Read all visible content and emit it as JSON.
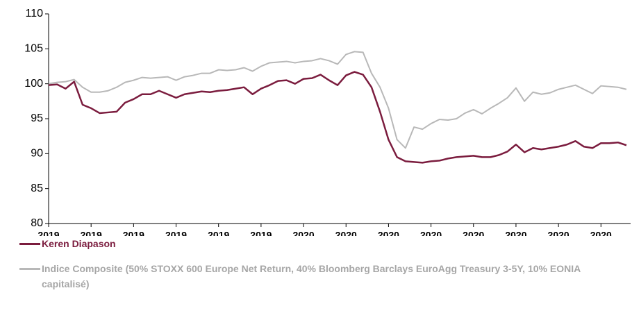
{
  "chart_data": {
    "type": "line",
    "categories": [
      "2019",
      null,
      null,
      null,
      null,
      "2019",
      null,
      null,
      null,
      null,
      "2019",
      null,
      null,
      null,
      null,
      "2019",
      null,
      null,
      null,
      null,
      "2019",
      null,
      null,
      null,
      null,
      "2019",
      null,
      null,
      null,
      null,
      "2020",
      null,
      null,
      null,
      null,
      "2020",
      null,
      null,
      null,
      null,
      "2020",
      null,
      null,
      null,
      null,
      "2020",
      null,
      null,
      null,
      null,
      "2020",
      null,
      null,
      null,
      null,
      "2020",
      null,
      null,
      null,
      null,
      "2020",
      null,
      null,
      null,
      null,
      "2020",
      null,
      null,
      null
    ],
    "series": [
      {
        "name": "Keren Diapason",
        "color": "#7b1c3e",
        "values": [
          99.8,
          99.9,
          99.3,
          100.3,
          97.0,
          96.5,
          95.8,
          95.9,
          96.0,
          97.3,
          97.8,
          98.5,
          98.5,
          99.0,
          98.5,
          98.0,
          98.5,
          98.7,
          98.9,
          98.8,
          99.0,
          99.1,
          99.3,
          99.5,
          98.5,
          99.3,
          99.8,
          100.4,
          100.5,
          100.0,
          100.7,
          100.8,
          101.3,
          100.5,
          99.8,
          101.2,
          101.7,
          101.3,
          99.5,
          96.0,
          92.0,
          89.5,
          88.9,
          88.8,
          88.7,
          88.9,
          89.0,
          89.3,
          89.5,
          89.6,
          89.7,
          89.5,
          89.5,
          89.8,
          90.3,
          91.3,
          90.2,
          90.8,
          90.6,
          90.8,
          91.0,
          91.3,
          91.8,
          91.0,
          90.8,
          91.5,
          91.5,
          91.6,
          91.2
        ]
      },
      {
        "name": "Indice Composite (50% STOXX 600 Europe Net Return, 40% Bloomberg Barclays EuroAgg Treasury 3-5Y, 10% EONIA capitalisé)",
        "color": "#b8b8b8",
        "values": [
          100.0,
          100.2,
          100.3,
          100.6,
          99.5,
          98.8,
          98.8,
          99.0,
          99.5,
          100.2,
          100.5,
          100.9,
          100.8,
          100.9,
          101.0,
          100.5,
          101.0,
          101.2,
          101.5,
          101.5,
          102.0,
          101.9,
          102.0,
          102.3,
          101.8,
          102.5,
          103.0,
          103.1,
          103.2,
          103.0,
          103.2,
          103.3,
          103.6,
          103.3,
          102.8,
          104.2,
          104.6,
          104.5,
          101.5,
          99.5,
          96.5,
          92.0,
          90.8,
          93.8,
          93.5,
          94.3,
          94.9,
          94.8,
          95.0,
          95.8,
          96.3,
          95.7,
          96.5,
          97.2,
          98.0,
          99.4,
          97.5,
          98.8,
          98.5,
          98.7,
          99.2,
          99.5,
          99.8,
          99.2,
          98.6,
          99.7,
          99.6,
          99.5,
          99.2
        ]
      }
    ],
    "ylim": [
      80,
      110
    ],
    "yticks": [
      80,
      85,
      90,
      95,
      100,
      105,
      110
    ],
    "grid": false,
    "legend": "bottom"
  }
}
